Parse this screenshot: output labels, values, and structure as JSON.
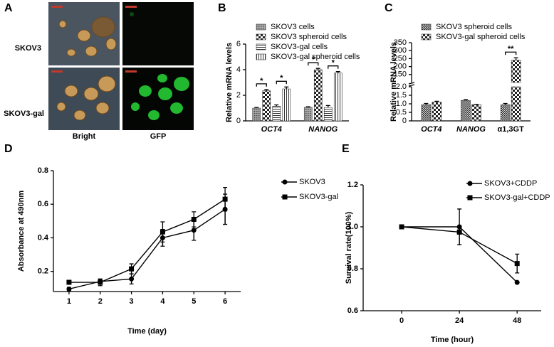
{
  "panel_a": {
    "letter": "A",
    "row_labels": [
      "SKOV3",
      "SKOV3-gal"
    ],
    "column_labels": [
      "Bright",
      "GFP"
    ]
  },
  "chart_data": [
    {
      "panel": "B",
      "type": "bar",
      "ylabel": "Relative mRNA levels",
      "categories": [
        "OCT4",
        "NANOG"
      ],
      "series": [
        {
          "name": "SKOV3 cells",
          "pattern": "dots",
          "values": [
            1.0,
            1.05
          ],
          "errors": [
            0.05,
            0.05
          ]
        },
        {
          "name": "SKOV3 spheroid cells",
          "pattern": "checker",
          "values": [
            2.35,
            4.0
          ],
          "errors": [
            0.1,
            0.1
          ]
        },
        {
          "name": "SKOV3-gal cells",
          "pattern": "hlines",
          "values": [
            1.15,
            1.05
          ],
          "errors": [
            0.1,
            0.15
          ]
        },
        {
          "name": "SKOV3-gal spheroid cells",
          "pattern": "vlines",
          "values": [
            2.5,
            3.75
          ],
          "errors": [
            0.15,
            0.1
          ]
        }
      ],
      "significance": [
        [
          "*",
          "*"
        ],
        [
          "*",
          "*"
        ]
      ],
      "ylim": [
        0,
        6
      ],
      "yticks": [
        0,
        2,
        4,
        6
      ]
    },
    {
      "panel": "C",
      "type": "broken-bar",
      "ylabel": "Relative mRNA levels",
      "categories": [
        "OCT4",
        "NANOG",
        "α1,3GT"
      ],
      "series": [
        {
          "name": "SKOV3 spheroid cells",
          "pattern": "fine-checker",
          "values": [
            0.95,
            1.2,
            0.95
          ],
          "errors": [
            0.07,
            0.05,
            0.07
          ]
        },
        {
          "name": "SKOV3-gal spheroid cells",
          "pattern": "checker",
          "values": [
            1.1,
            0.95,
            240
          ],
          "errors": [
            0.05,
            0.02,
            15
          ]
        }
      ],
      "significance": [
        null,
        null,
        "**"
      ],
      "ylim": [
        0,
        {
          "value": 2.0,
          "label": "2.0"
        }
      ],
      "yticks": [
        0,
        0.5,
        {
          "value": 1.0,
          "label": "1.0"
        },
        1.5,
        {
          "value": 2.0,
          "label": "2.0"
        }
      ],
      "upper_ylim": [
        100,
        350
      ],
      "upper_yticks": [
        150,
        200,
        250,
        300,
        350
      ]
    },
    {
      "panel": "D",
      "type": "line",
      "xlabel": "Time (day)",
      "ylabel": "Absorbance at 490nm",
      "x": [
        1,
        2,
        3,
        4,
        5,
        6
      ],
      "series": [
        {
          "name": "SKOV3",
          "marker": "circle",
          "color": "#000000",
          "values": [
            0.095,
            0.14,
            0.155,
            0.4,
            0.445,
            0.57
          ],
          "errors": [
            0.01,
            0.01,
            0.03,
            0.05,
            0.06,
            0.09
          ]
        },
        {
          "name": "SKOV3-gal",
          "marker": "square",
          "color": "#000000",
          "values": [
            0.135,
            0.135,
            0.215,
            0.435,
            0.51,
            0.63
          ],
          "errors": [
            0.005,
            0.02,
            0.03,
            0.06,
            0.045,
            0.07
          ]
        }
      ],
      "xlim": [
        0.5,
        6.5
      ],
      "xticks": [
        1,
        2,
        3,
        4,
        5,
        6
      ],
      "ylim": [
        0.08,
        0.8
      ],
      "yticks": [
        0.2,
        0.4,
        0.6,
        0.8
      ]
    },
    {
      "panel": "E",
      "type": "line",
      "xlabel": "Time (hour)",
      "ylabel": "Survival rate(100%)",
      "x": [
        0,
        24,
        48
      ],
      "series": [
        {
          "name": "SKOV3+CDDP",
          "marker": "circle",
          "color": "#000000",
          "values": [
            1.0,
            1.0,
            0.735
          ],
          "errors": [
            0,
            0.085,
            0
          ]
        },
        {
          "name": "SKOV3-gal+CDDP",
          "marker": "square",
          "color": "#000000",
          "values": [
            1.0,
            0.975,
            0.825
          ],
          "errors": [
            0,
            0.01,
            0.045
          ]
        }
      ],
      "xlim": [
        -16,
        58
      ],
      "xticks": [
        0,
        24,
        48
      ],
      "ylim": [
        0.6,
        1.2
      ],
      "yticks": [
        0.6,
        0.8,
        {
          "value": 1.0,
          "label": "1.0"
        },
        1.2
      ]
    }
  ]
}
